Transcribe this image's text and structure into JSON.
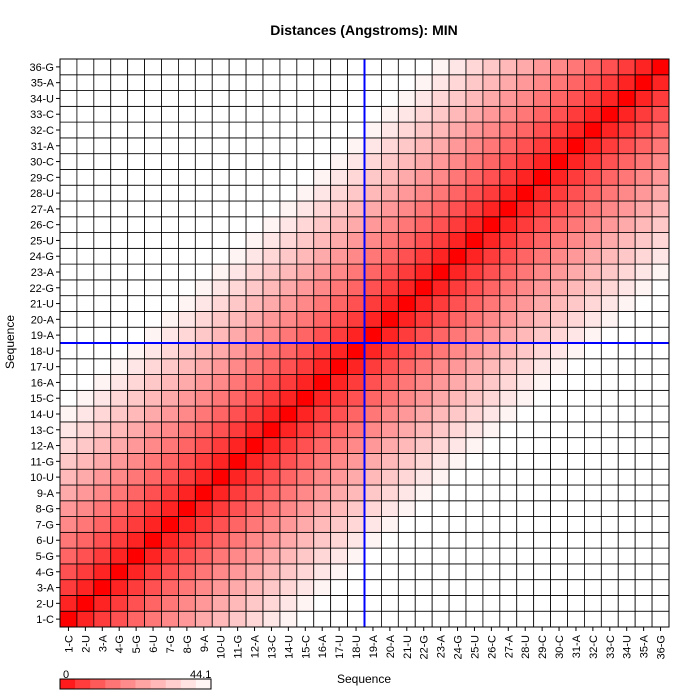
{
  "chart_data": {
    "type": "heatmap",
    "title": "Distances (Angstroms):  MIN",
    "xlabel": "Sequence",
    "ylabel": "Sequence",
    "labels": [
      "1-C",
      "2-U",
      "3-A",
      "4-G",
      "5-G",
      "6-U",
      "7-G",
      "8-G",
      "9-A",
      "10-U",
      "11-G",
      "12-A",
      "13-C",
      "14-U",
      "15-C",
      "16-A",
      "17-U",
      "18-U",
      "19-A",
      "20-A",
      "21-U",
      "22-G",
      "23-A",
      "24-G",
      "25-U",
      "26-C",
      "27-A",
      "28-U",
      "29-C",
      "30-C",
      "31-A",
      "32-C",
      "33-C",
      "34-U",
      "35-A",
      "36-G"
    ],
    "value_model": "approx value(i,j) ≈ 3.2 × |i − j| (Å), capped at 44.1; diagonal = 0",
    "color_scale": {
      "min": 0,
      "max": 44.1,
      "min_label": "0",
      "max_label": "44.1",
      "low_color": "#ff0000",
      "high_color": "#ffffff"
    },
    "crosshair": {
      "column": "18-U",
      "row": "18-U",
      "color": "#0000ff"
    },
    "grid": true
  }
}
